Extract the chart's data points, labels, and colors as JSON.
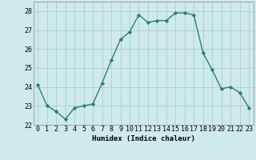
{
  "x": [
    0,
    1,
    2,
    3,
    4,
    5,
    6,
    7,
    8,
    9,
    10,
    11,
    12,
    13,
    14,
    15,
    16,
    17,
    18,
    19,
    20,
    21,
    22,
    23
  ],
  "y": [
    24.1,
    23.0,
    22.7,
    22.3,
    22.9,
    23.0,
    23.1,
    24.2,
    25.4,
    26.5,
    26.9,
    27.8,
    27.4,
    27.5,
    27.5,
    27.9,
    27.9,
    27.8,
    25.8,
    24.9,
    23.9,
    24.0,
    23.7,
    22.9
  ],
  "line_color": "#2e7d6e",
  "marker": "D",
  "marker_size": 2.2,
  "bg_color": "#ceeaea",
  "grid_color": "#aacece",
  "xlabel": "Humidex (Indice chaleur)",
  "ylim": [
    22,
    28.5
  ],
  "xlim": [
    -0.5,
    23.5
  ],
  "yticks": [
    22,
    23,
    24,
    25,
    26,
    27,
    28
  ],
  "xticks": [
    0,
    1,
    2,
    3,
    4,
    5,
    6,
    7,
    8,
    9,
    10,
    11,
    12,
    13,
    14,
    15,
    16,
    17,
    18,
    19,
    20,
    21,
    22,
    23
  ],
  "xlabel_fontsize": 6.5,
  "tick_fontsize": 6.0,
  "line_width": 1.0
}
